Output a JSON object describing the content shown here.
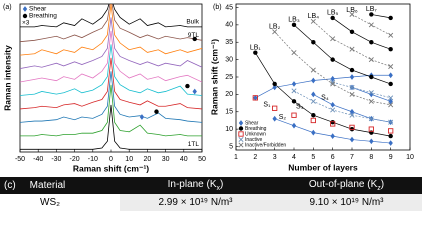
{
  "chart_data": [
    {
      "type": "line",
      "panel": "(a)",
      "x_label": "Raman shift (cm⁻¹)",
      "y_label": "Raman intensity",
      "xlim": [
        -50,
        50
      ],
      "xticks": [
        -50,
        -40,
        -30,
        -20,
        -10,
        0,
        10,
        20,
        30,
        40,
        50
      ],
      "ylim": [
        0,
        11
      ],
      "x": [
        -50,
        -42,
        -38,
        -30,
        -26,
        -20,
        -16,
        -10,
        -5,
        -2,
        0,
        2,
        5,
        10,
        16,
        20,
        26,
        30,
        38,
        42,
        50
      ],
      "series": [
        {
          "name": "1TL",
          "color": "#000000",
          "values": [
            0.2,
            0.2,
            0.2,
            0.2,
            0.2,
            0.2,
            0.2,
            0.2,
            0.3,
            0.8,
            3.5,
            0.8,
            0.3,
            0.2,
            0.2,
            0.2,
            0.2,
            0.2,
            0.2,
            0.2,
            0.2
          ]
        },
        {
          "name": null,
          "color": "#2ca02c",
          "values": [
            1.2,
            1.2,
            1.3,
            1.2,
            1.3,
            1.3,
            1.4,
            1.4,
            1.6,
            2.2,
            5,
            2.2,
            1.6,
            1.5,
            2.0,
            1.4,
            1.3,
            1.2,
            1.3,
            1.2,
            1.2
          ]
        },
        {
          "name": null,
          "color": "#1f77b4",
          "values": [
            2.2,
            2.3,
            2.3,
            2.4,
            2.6,
            2.4,
            2.6,
            2.5,
            2.8,
            3.4,
            6,
            3.4,
            2.8,
            2.6,
            2.7,
            2.5,
            2.9,
            2.5,
            2.4,
            2.3,
            2.2
          ]
        },
        {
          "name": null,
          "color": "#d62728",
          "values": [
            3.2,
            3.3,
            3.4,
            3.3,
            3.5,
            3.6,
            3.4,
            3.7,
            3.9,
            4.5,
            7,
            4.5,
            3.9,
            3.7,
            3.5,
            3.8,
            3.4,
            3.4,
            3.6,
            3.3,
            3.2
          ]
        },
        {
          "name": null,
          "color": "#17becf",
          "values": [
            4.2,
            4.3,
            4.5,
            4.3,
            4.4,
            4.7,
            4.4,
            4.6,
            5.0,
            5.6,
            8,
            5.6,
            5.0,
            4.6,
            4.4,
            4.7,
            4.4,
            4.5,
            4.9,
            4.3,
            4.2
          ]
        },
        {
          "name": null,
          "color": "#e377c2",
          "values": [
            5.2,
            5.4,
            5.5,
            5.3,
            5.6,
            5.4,
            5.8,
            5.5,
            6.0,
            6.6,
            9,
            6.6,
            6.0,
            5.5,
            5.8,
            5.4,
            5.6,
            5.3,
            5.6,
            5.7,
            5.2
          ]
        },
        {
          "name": null,
          "color": "#9467bd",
          "values": [
            6.2,
            6.4,
            6.3,
            6.6,
            6.4,
            6.7,
            6.5,
            6.8,
            7.1,
            7.7,
            10,
            7.7,
            7.1,
            6.8,
            6.5,
            6.7,
            6.4,
            6.6,
            6.4,
            6.8,
            6.3
          ]
        },
        {
          "name": null,
          "color": "#ff7f0e",
          "values": [
            7.2,
            7.3,
            7.6,
            7.3,
            7.6,
            7.4,
            7.8,
            7.6,
            8.1,
            8.7,
            11,
            8.7,
            8.1,
            7.6,
            7.8,
            7.4,
            7.6,
            7.3,
            7.6,
            7.4,
            7.7
          ]
        },
        {
          "name": "9TL",
          "color": "#8c564b",
          "values": [
            8.2,
            8.3,
            8.4,
            8.6,
            8.4,
            8.7,
            8.5,
            8.9,
            9.2,
            9.8,
            11.5,
            9.8,
            9.2,
            8.9,
            8.5,
            8.7,
            8.4,
            8.6,
            8.4,
            8.5,
            8.3
          ]
        },
        {
          "name": "Bulk",
          "color": "#000000",
          "values": [
            9.3,
            9.3,
            9.4,
            9.3,
            9.6,
            9.4,
            9.9,
            9.5,
            10.0,
            10.6,
            11.5,
            10.6,
            10.0,
            9.5,
            9.9,
            9.4,
            9.6,
            9.3,
            9.4,
            9.3,
            9.3
          ]
        }
      ],
      "marker_series": [
        {
          "name": "Shear",
          "color": "#3a6fc4",
          "marker": "diamond",
          "x": [
            17,
            46
          ],
          "values": [
            2.6,
            4.5
          ]
        },
        {
          "name": "Breathing",
          "color": "#000000",
          "marker": "circle",
          "x": [
            25,
            42,
            46
          ],
          "values": [
            3.0,
            4.9,
            8.4
          ]
        }
      ],
      "note": "×3",
      "note_color": "#e0559a",
      "legend": "upper left"
    },
    {
      "type": "line",
      "panel": "(b)",
      "x_label": "Number of layers",
      "y_label": "Raman shift (cm⁻¹)",
      "xlim": [
        1,
        10
      ],
      "xticks": [
        1,
        2,
        3,
        4,
        5,
        6,
        7,
        8,
        9,
        10
      ],
      "ylim": [
        4,
        46
      ],
      "yticks": [
        5,
        10,
        15,
        20,
        25,
        30,
        35,
        40,
        45
      ],
      "series": [
        {
          "name": "Shear",
          "color": "#3a6fc4",
          "marker": "diamond",
          "line": true,
          "dash": false,
          "x": [
            2,
            3,
            4,
            5,
            6,
            7,
            8,
            9,
            null,
            3,
            4,
            5,
            6,
            7,
            8,
            9,
            null,
            5,
            6,
            7,
            8,
            9,
            null,
            7,
            8,
            9
          ],
          "values": [
            19,
            22,
            23,
            24,
            24.5,
            25,
            25.5,
            25.5,
            null,
            13,
            11,
            9,
            8,
            7,
            6.5,
            6,
            null,
            20,
            17,
            15,
            13,
            12,
            null,
            22,
            20,
            18
          ]
        },
        {
          "name": "Breathing",
          "color": "#000000",
          "marker": "circle",
          "line": true,
          "dash": false,
          "x": [
            2,
            3,
            4,
            5,
            6,
            7,
            8,
            9,
            null,
            4,
            5,
            6,
            7,
            8,
            9,
            null,
            6,
            7,
            8,
            9,
            null,
            8,
            9
          ],
          "values": [
            32,
            23,
            18,
            14,
            12,
            10,
            9,
            8,
            null,
            40,
            35,
            30,
            27,
            25,
            23,
            null,
            42,
            38,
            35,
            33,
            null,
            43,
            42
          ]
        },
        {
          "name": "Unknown",
          "color": "#d62728",
          "marker": "square",
          "line": false,
          "dash": false,
          "x": [
            2,
            3,
            4,
            5,
            6,
            7,
            8,
            9
          ],
          "values": [
            19,
            16,
            14,
            12.5,
            11.5,
            10.5,
            10,
            9.5
          ]
        },
        {
          "name": "Inactive",
          "color": "#6b8fb8",
          "marker": "cross",
          "line": true,
          "dash": true,
          "x": [
            4,
            5,
            6,
            7,
            8,
            9,
            null,
            6,
            7,
            8,
            9
          ],
          "values": [
            21,
            18,
            15.5,
            14,
            13,
            12,
            null,
            23.5,
            22,
            20.5,
            19
          ]
        },
        {
          "name": "Inactive/Forbidden",
          "color": "#777777",
          "marker": "cross",
          "line": true,
          "dash": true,
          "x": [
            3,
            4,
            5,
            6,
            7,
            8,
            9,
            null,
            5,
            6,
            7,
            8,
            9,
            null,
            7,
            8,
            9
          ],
          "values": [
            38,
            32,
            27,
            23,
            20,
            18,
            17,
            null,
            41,
            36,
            33,
            30,
            28,
            null,
            43,
            40,
            37
          ]
        }
      ],
      "annotations": [
        "LB₁",
        "LB₂",
        "LB₃",
        "LB₄",
        "LB₅",
        "LB₆",
        "LB₇",
        "S₁",
        "S₂",
        "S₃",
        "S₄"
      ],
      "legend": "lower left"
    }
  ],
  "table": {
    "label": "(c)",
    "header": [
      "Material",
      {
        "text": "In-plane (K",
        "sub": "x",
        "end": ")"
      },
      {
        "text": "Out-of-plane (K",
        "sub": "z",
        "end": ")"
      }
    ],
    "rows": [
      [
        "WS₂",
        "2.99 × 10¹⁹ N/m³",
        "9.10 × 10¹⁹ N/m³"
      ]
    ]
  }
}
